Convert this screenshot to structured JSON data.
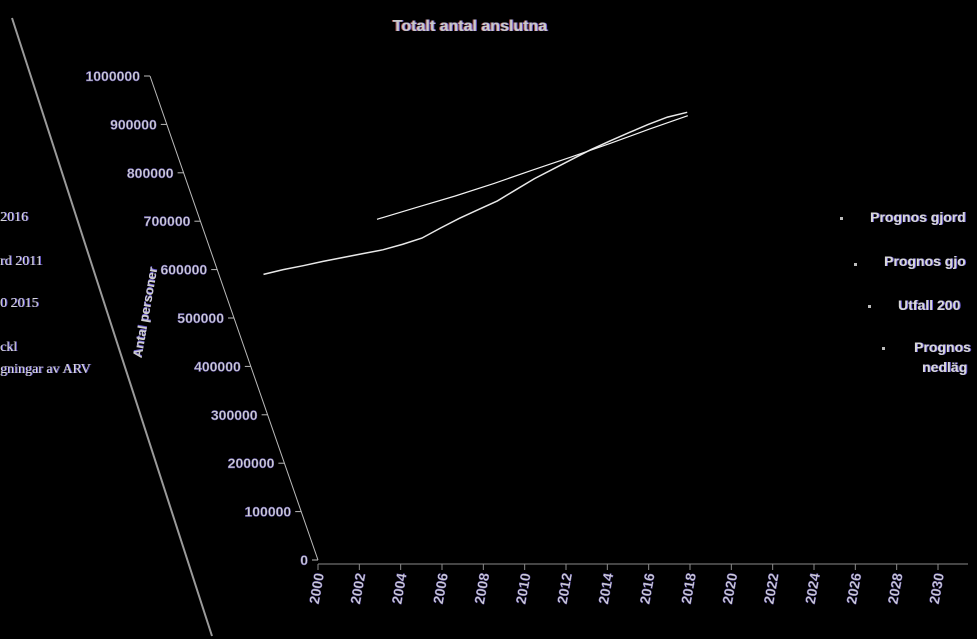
{
  "chart_data": {
    "type": "line",
    "title": "Totalt antal anslutna",
    "xlabel": "",
    "ylabel": "Antal personer",
    "ylim": [
      0,
      1000000
    ],
    "y_ticks": [
      "0",
      "100000",
      "200000",
      "300000",
      "400000",
      "500000",
      "600000",
      "700000",
      "800000",
      "900000",
      "1000000"
    ],
    "x_ticks": [
      "2000",
      "2002",
      "2004",
      "2006",
      "2008",
      "2010",
      "2012",
      "2014",
      "2016",
      "2018",
      "2020",
      "2022",
      "2024",
      "2026",
      "2028",
      "2030"
    ],
    "xlim": [
      2000,
      2030
    ],
    "series": [
      {
        "name": "",
        "color": "#e8e8e8",
        "x": [
          2000,
          2001,
          2002,
          2003,
          2004,
          2005,
          2006,
          2007,
          2008,
          2009,
          2010,
          2011,
          2012,
          2013,
          2014,
          2015,
          2016,
          2017,
          2018,
          2019,
          2020,
          2021,
          2022
        ],
        "values": [
          590000,
          600000,
          608000,
          617000,
          625000,
          633000,
          641000,
          652000,
          665000,
          686000,
          706000,
          724000,
          742000,
          765000,
          788000,
          808000,
          828000,
          848000,
          866000,
          883000,
          900000,
          915000,
          925000
        ]
      },
      {
        "name": "",
        "color": "#f2f2f2",
        "x": [
          2006,
          2008,
          2010,
          2012,
          2014,
          2016,
          2018,
          2020,
          2022
        ],
        "values": [
          704000,
          728000,
          752000,
          778000,
          806000,
          833000,
          861000,
          890000,
          918000
        ]
      }
    ],
    "legend": {
      "placement": "right",
      "left_entries": [
        "2016",
        "rd 2011",
        "0 2015",
        "ckl",
        "gningar av ARV"
      ],
      "right_entries": [
        "Prognos gjord",
        "Prognos gjo",
        "Utfall 200",
        "Prognos",
        "nedläg"
      ]
    },
    "grid": false
  }
}
